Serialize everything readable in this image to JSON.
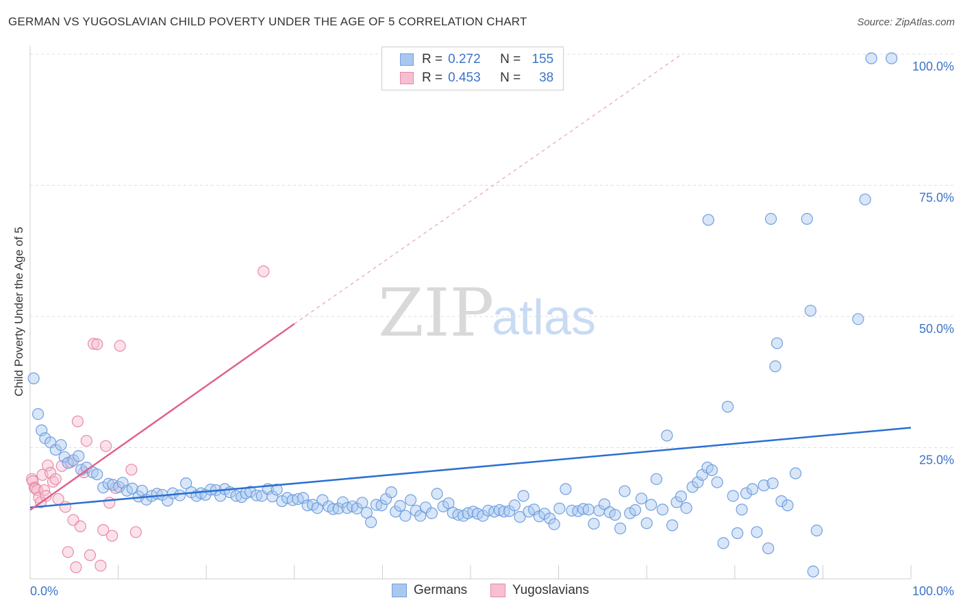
{
  "title": "GERMAN VS YUGOSLAVIAN CHILD POVERTY UNDER THE AGE OF 5 CORRELATION CHART",
  "source": "Source: ZipAtlas.com",
  "watermark": {
    "zip": "ZIP",
    "atlas": "atlas"
  },
  "legend": {
    "rows": [
      {
        "r_label": "R =",
        "r_value": "0.272",
        "n_label": "N =",
        "n_value": "155",
        "color": "#a9c8f0",
        "border": "#6f9fdf"
      },
      {
        "r_label": "R =",
        "r_value": "0.453",
        "n_label": "N =",
        "n_value": "38",
        "color": "#f7bfd0",
        "border": "#e58aa7"
      }
    ]
  },
  "bottom_legend": {
    "germans": "Germans",
    "yugoslavians": "Yugoslavians"
  },
  "chart_data": {
    "type": "scatter",
    "xlabel": "",
    "ylabel": "Child Poverty Under the Age of 5",
    "xlim": [
      0,
      100
    ],
    "ylim": [
      0,
      100
    ],
    "x_tick_labels": [
      "0.0%",
      "100.0%"
    ],
    "y_tick_labels": [
      "25.0%",
      "50.0%",
      "75.0%",
      "100.0%"
    ],
    "y_ticks": [
      25,
      50,
      75,
      100
    ],
    "grid": true,
    "colors": {
      "germans": "#6f9fdf",
      "germans_fill": "#a9c8f0",
      "germans_line": "#2a6fd1",
      "yugoslavians": "#e58aa7",
      "yugoslavians_fill": "#f7bfd0",
      "yugoslavians_line": "#e0608c"
    },
    "series": [
      {
        "name": "Germans",
        "trend": {
          "x": [
            0,
            100
          ],
          "y": [
            13.6,
            28.8
          ]
        },
        "points": [
          [
            0.4,
            38.2
          ],
          [
            0.9,
            31.4
          ],
          [
            1.3,
            28.3
          ],
          [
            1.7,
            26.8
          ],
          [
            2.3,
            26.0
          ],
          [
            2.9,
            24.6
          ],
          [
            3.5,
            25.5
          ],
          [
            3.9,
            23.2
          ],
          [
            4.3,
            22.1
          ],
          [
            4.9,
            22.6
          ],
          [
            5.5,
            23.4
          ],
          [
            5.8,
            20.8
          ],
          [
            6.4,
            21.2
          ],
          [
            7.1,
            20.3
          ],
          [
            7.6,
            19.9
          ],
          [
            8.3,
            17.4
          ],
          [
            8.9,
            18.1
          ],
          [
            9.4,
            17.9
          ],
          [
            10.1,
            17.5
          ],
          [
            10.5,
            18.3
          ],
          [
            11.0,
            16.8
          ],
          [
            11.6,
            17.2
          ],
          [
            12.3,
            15.7
          ],
          [
            12.7,
            16.8
          ],
          [
            13.2,
            15.1
          ],
          [
            13.8,
            15.8
          ],
          [
            14.4,
            16.2
          ],
          [
            15.0,
            16.0
          ],
          [
            15.6,
            14.9
          ],
          [
            16.2,
            16.3
          ],
          [
            17.0,
            15.9
          ],
          [
            17.7,
            18.2
          ],
          [
            18.3,
            16.5
          ],
          [
            18.9,
            15.8
          ],
          [
            19.4,
            16.3
          ],
          [
            19.9,
            16.0
          ],
          [
            20.5,
            17.0
          ],
          [
            21.1,
            16.9
          ],
          [
            21.6,
            15.8
          ],
          [
            22.1,
            17.1
          ],
          [
            22.7,
            16.5
          ],
          [
            23.4,
            15.8
          ],
          [
            24.0,
            15.6
          ],
          [
            24.5,
            16.3
          ],
          [
            25.0,
            16.6
          ],
          [
            25.7,
            15.9
          ],
          [
            26.3,
            15.8
          ],
          [
            27.0,
            17.1
          ],
          [
            27.5,
            15.7
          ],
          [
            28.0,
            17.0
          ],
          [
            28.6,
            14.8
          ],
          [
            29.2,
            15.4
          ],
          [
            29.8,
            15.0
          ],
          [
            30.4,
            15.2
          ],
          [
            31.0,
            15.4
          ],
          [
            31.5,
            14.0
          ],
          [
            32.1,
            14.1
          ],
          [
            32.6,
            13.5
          ],
          [
            33.2,
            15.0
          ],
          [
            33.9,
            13.8
          ],
          [
            34.4,
            13.3
          ],
          [
            35.0,
            13.4
          ],
          [
            35.5,
            14.6
          ],
          [
            36.0,
            13.5
          ],
          [
            36.6,
            13.8
          ],
          [
            37.1,
            13.4
          ],
          [
            37.7,
            14.5
          ],
          [
            38.2,
            12.6
          ],
          [
            38.7,
            10.8
          ],
          [
            39.3,
            14.1
          ],
          [
            39.9,
            14.0
          ],
          [
            40.4,
            15.2
          ],
          [
            41.0,
            16.5
          ],
          [
            41.5,
            12.8
          ],
          [
            42.0,
            13.9
          ],
          [
            42.6,
            12.0
          ],
          [
            43.2,
            15.0
          ],
          [
            43.8,
            13.0
          ],
          [
            44.3,
            12.0
          ],
          [
            44.9,
            13.6
          ],
          [
            45.6,
            12.5
          ],
          [
            46.2,
            16.2
          ],
          [
            46.9,
            13.8
          ],
          [
            47.5,
            14.4
          ],
          [
            48.0,
            12.6
          ],
          [
            48.6,
            12.2
          ],
          [
            49.2,
            12.0
          ],
          [
            49.7,
            12.5
          ],
          [
            50.3,
            12.8
          ],
          [
            50.8,
            12.4
          ],
          [
            51.4,
            12.0
          ],
          [
            52.0,
            13.0
          ],
          [
            52.7,
            12.8
          ],
          [
            53.3,
            13.1
          ],
          [
            53.8,
            12.8
          ],
          [
            54.4,
            12.9
          ],
          [
            55.0,
            14.0
          ],
          [
            55.6,
            11.8
          ],
          [
            56.0,
            15.8
          ],
          [
            56.6,
            12.8
          ],
          [
            57.2,
            13.2
          ],
          [
            57.8,
            11.9
          ],
          [
            58.4,
            12.4
          ],
          [
            59.0,
            11.5
          ],
          [
            59.5,
            10.4
          ],
          [
            60.1,
            13.4
          ],
          [
            60.8,
            17.1
          ],
          [
            61.5,
            13.0
          ],
          [
            62.2,
            12.9
          ],
          [
            62.8,
            13.3
          ],
          [
            63.4,
            13.2
          ],
          [
            64.0,
            10.5
          ],
          [
            64.6,
            13.0
          ],
          [
            65.2,
            14.2
          ],
          [
            65.8,
            12.7
          ],
          [
            66.4,
            12.2
          ],
          [
            67.0,
            9.6
          ],
          [
            67.5,
            16.7
          ],
          [
            68.1,
            12.5
          ],
          [
            68.7,
            13.1
          ],
          [
            69.4,
            15.3
          ],
          [
            70.0,
            10.6
          ],
          [
            70.5,
            14.1
          ],
          [
            71.1,
            19.0
          ],
          [
            71.8,
            13.2
          ],
          [
            72.3,
            27.3
          ],
          [
            72.9,
            10.2
          ],
          [
            73.4,
            14.6
          ],
          [
            73.9,
            15.7
          ],
          [
            74.5,
            13.5
          ],
          [
            75.2,
            17.5
          ],
          [
            75.8,
            18.4
          ],
          [
            76.3,
            19.8
          ],
          [
            76.9,
            21.2
          ],
          [
            77.4,
            20.7
          ],
          [
            78.0,
            18.4
          ],
          [
            78.7,
            6.8
          ],
          [
            79.2,
            32.8
          ],
          [
            79.8,
            15.8
          ],
          [
            80.3,
            8.7
          ],
          [
            80.8,
            13.2
          ],
          [
            81.3,
            16.3
          ],
          [
            82.0,
            17.1
          ],
          [
            82.5,
            8.9
          ],
          [
            83.3,
            17.8
          ],
          [
            83.8,
            5.8
          ],
          [
            84.3,
            18.2
          ],
          [
            84.6,
            40.5
          ],
          [
            84.8,
            44.9
          ],
          [
            85.3,
            14.8
          ],
          [
            86.0,
            14.0
          ],
          [
            86.9,
            20.1
          ],
          [
            88.6,
            51.1
          ],
          [
            88.9,
            1.4
          ],
          [
            89.3,
            9.2
          ],
          [
            94.0,
            49.5
          ],
          [
            94.8,
            72.3
          ],
          [
            95.5,
            99.2
          ],
          [
            97.8,
            99.2
          ],
          [
            77.0,
            68.4
          ],
          [
            84.1,
            68.6
          ],
          [
            88.2,
            68.6
          ]
        ]
      },
      {
        "name": "Yugoslavians",
        "trend": {
          "x": [
            0,
            30
          ],
          "y": [
            13.1,
            48.6
          ],
          "dashed_to": [
            74,
            100
          ]
        },
        "points": [
          [
            0.2,
            19.0
          ],
          [
            0.3,
            18.6
          ],
          [
            0.5,
            17.4
          ],
          [
            0.6,
            17.2
          ],
          [
            0.8,
            16.9
          ],
          [
            1.0,
            15.5
          ],
          [
            1.2,
            14.6
          ],
          [
            1.4,
            19.8
          ],
          [
            1.6,
            16.9
          ],
          [
            1.8,
            15.8
          ],
          [
            2.0,
            21.6
          ],
          [
            2.3,
            20.2
          ],
          [
            2.6,
            18.5
          ],
          [
            2.9,
            19.0
          ],
          [
            3.2,
            15.2
          ],
          [
            3.6,
            21.5
          ],
          [
            4.0,
            13.7
          ],
          [
            4.3,
            5.1
          ],
          [
            4.6,
            22.2
          ],
          [
            4.9,
            11.2
          ],
          [
            5.2,
            2.2
          ],
          [
            5.4,
            30.0
          ],
          [
            5.7,
            10.0
          ],
          [
            6.1,
            20.3
          ],
          [
            6.4,
            26.3
          ],
          [
            6.8,
            4.5
          ],
          [
            7.2,
            44.8
          ],
          [
            7.6,
            44.7
          ],
          [
            8.0,
            2.5
          ],
          [
            8.3,
            9.3
          ],
          [
            8.6,
            25.3
          ],
          [
            9.0,
            14.5
          ],
          [
            9.3,
            8.2
          ],
          [
            9.7,
            17.3
          ],
          [
            10.2,
            44.4
          ],
          [
            11.5,
            20.8
          ],
          [
            12.0,
            8.9
          ],
          [
            26.5,
            58.6
          ]
        ]
      }
    ]
  }
}
